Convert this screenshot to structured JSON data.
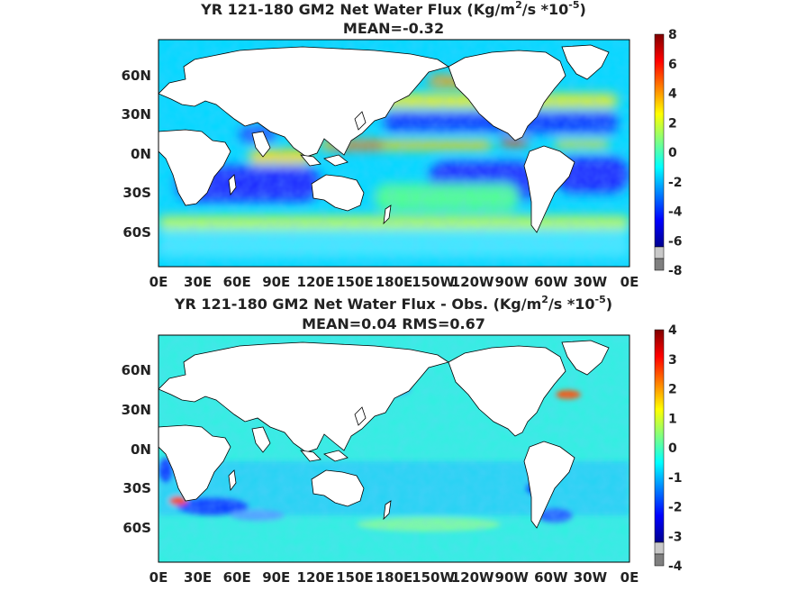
{
  "panels": [
    {
      "title_prefix": "YR 121-180 GM2  Net Water Flux (Kg/m",
      "title_sup1": "2",
      "title_mid": "/s *10",
      "title_sup2": "-5",
      "title_suffix": ")",
      "stats": "MEAN=-0.32",
      "lat_labels": [
        "60N",
        "30N",
        "0N",
        "30S",
        "60S"
      ],
      "lon_labels": [
        "0E",
        "30E",
        "60E",
        "90E",
        "120E",
        "150E",
        "180E",
        "150W",
        "120W",
        "90W",
        "60W",
        "30W",
        "0E"
      ],
      "colorbar_labels": [
        "8",
        "6",
        "4",
        "2",
        "0",
        "-2",
        "-4",
        "-6",
        "-8"
      ],
      "colorbar_range": [
        -8,
        8
      ],
      "map_type": "global net water flux"
    },
    {
      "title_prefix": "YR 121-180 GM2  Net Water Flux - Obs. (Kg/m",
      "title_sup1": "2",
      "title_mid": "/s *10",
      "title_sup2": "-5",
      "title_suffix": ")",
      "stats": "MEAN=0.04 RMS=0.67",
      "lat_labels": [
        "60N",
        "30N",
        "0N",
        "30S",
        "60S"
      ],
      "lon_labels": [
        "0E",
        "30E",
        "60E",
        "90E",
        "120E",
        "150E",
        "180E",
        "150W",
        "120W",
        "90W",
        "60W",
        "30W",
        "0E"
      ],
      "colorbar_labels": [
        "4",
        "3",
        "2",
        "1",
        "0",
        "-1",
        "-2",
        "-3",
        "-4"
      ],
      "colorbar_range": [
        -4,
        4
      ],
      "map_type": "difference from observations"
    }
  ],
  "colors": {
    "colormap": [
      "#00008f",
      "#0000ff",
      "#0080ff",
      "#00ffff",
      "#80ff80",
      "#ffff00",
      "#ff8000",
      "#ff0000",
      "#800000"
    ],
    "land": "#ffffff",
    "coast": "#000000",
    "out_of_range_high": "#7f7f7f",
    "out_of_range_low": "#c8c8c8"
  }
}
